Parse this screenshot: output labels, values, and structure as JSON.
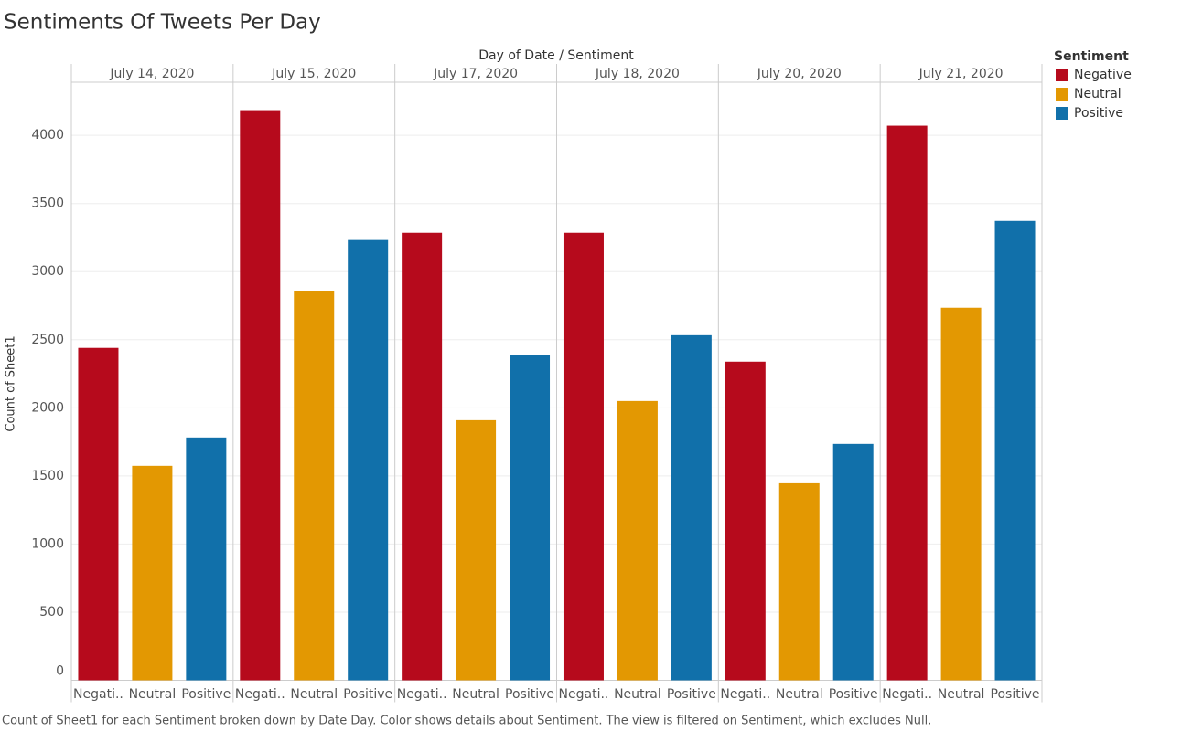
{
  "chart_data": {
    "type": "bar",
    "title": "Sentiments Of Tweets Per Day",
    "column_header": "Day of Date / Sentiment",
    "y_label": "Count of Sheet1",
    "caption": "Count of Sheet1 for each Sentiment broken down by Date Day.  Color shows details about Sentiment. The view is filtered on Sentiment, which excludes Null.",
    "legend_title": "Sentiment",
    "categories": [
      "July 14, 2020",
      "July 15, 2020",
      "July 17, 2020",
      "July 18, 2020",
      "July 20, 2020",
      "July 21, 2020"
    ],
    "sentiment_labels": [
      "Negati..",
      "Neutral",
      "Positive"
    ],
    "series": [
      {
        "name": "Negative",
        "color": "#b60a1c",
        "values": [
          2440,
          4185,
          3285,
          3285,
          2339,
          4071
        ]
      },
      {
        "name": "Neutral",
        "color": "#e39802",
        "values": [
          1574,
          2856,
          1909,
          2050,
          1446,
          2735
        ]
      },
      {
        "name": "Positive",
        "color": "#1170aa",
        "values": [
          1782,
          3232,
          2386,
          2533,
          1735,
          3372
        ]
      }
    ],
    "ylim": [
      0,
      4390
    ],
    "yticks": [
      0,
      500,
      1000,
      1500,
      2000,
      2500,
      3000,
      3500,
      4000
    ],
    "grid": true,
    "legend": "right"
  }
}
